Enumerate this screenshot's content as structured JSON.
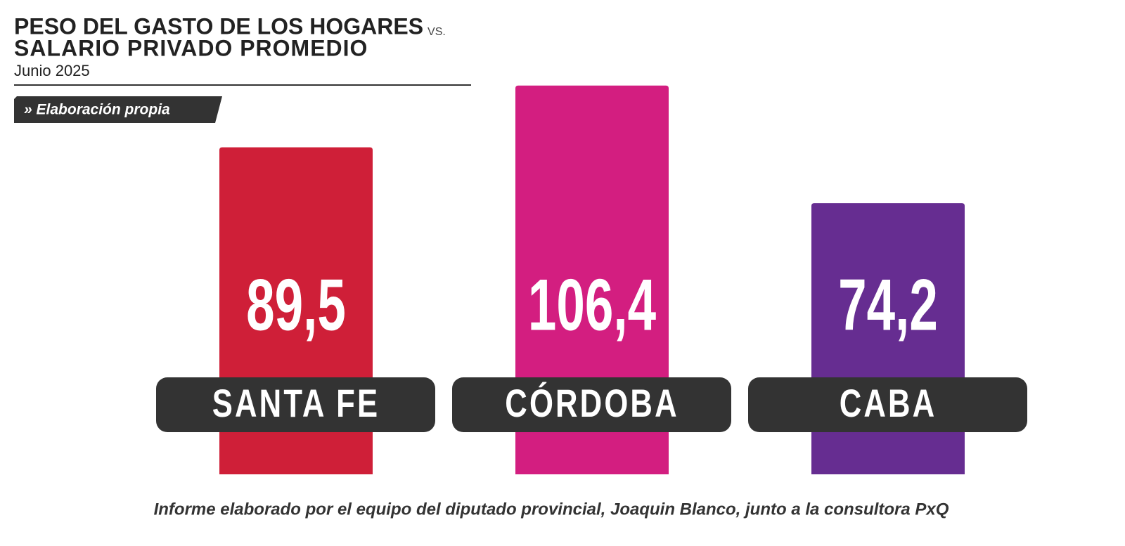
{
  "chart_data": {
    "type": "bar",
    "title": "PESO DEL GASTO DE LOS HOGARES",
    "title_connector": "VS.",
    "title_line2": "SALARIO PRIVADO PROMEDIO",
    "subtitle": "Junio 2025",
    "source": "» Elaboración propia",
    "note": "Informe elaborado por el equipo del diputado provincial, Joaquin Blanco, junto a la consultora PxQ",
    "categories": [
      "SANTA FE",
      "CÓRDOBA",
      "CABA"
    ],
    "values": [
      89.5,
      106.4,
      74.2
    ],
    "value_labels": [
      "89,5",
      "106,4",
      "74,2"
    ],
    "colors": [
      "#cf1f38",
      "#d31e80",
      "#662d91"
    ]
  }
}
